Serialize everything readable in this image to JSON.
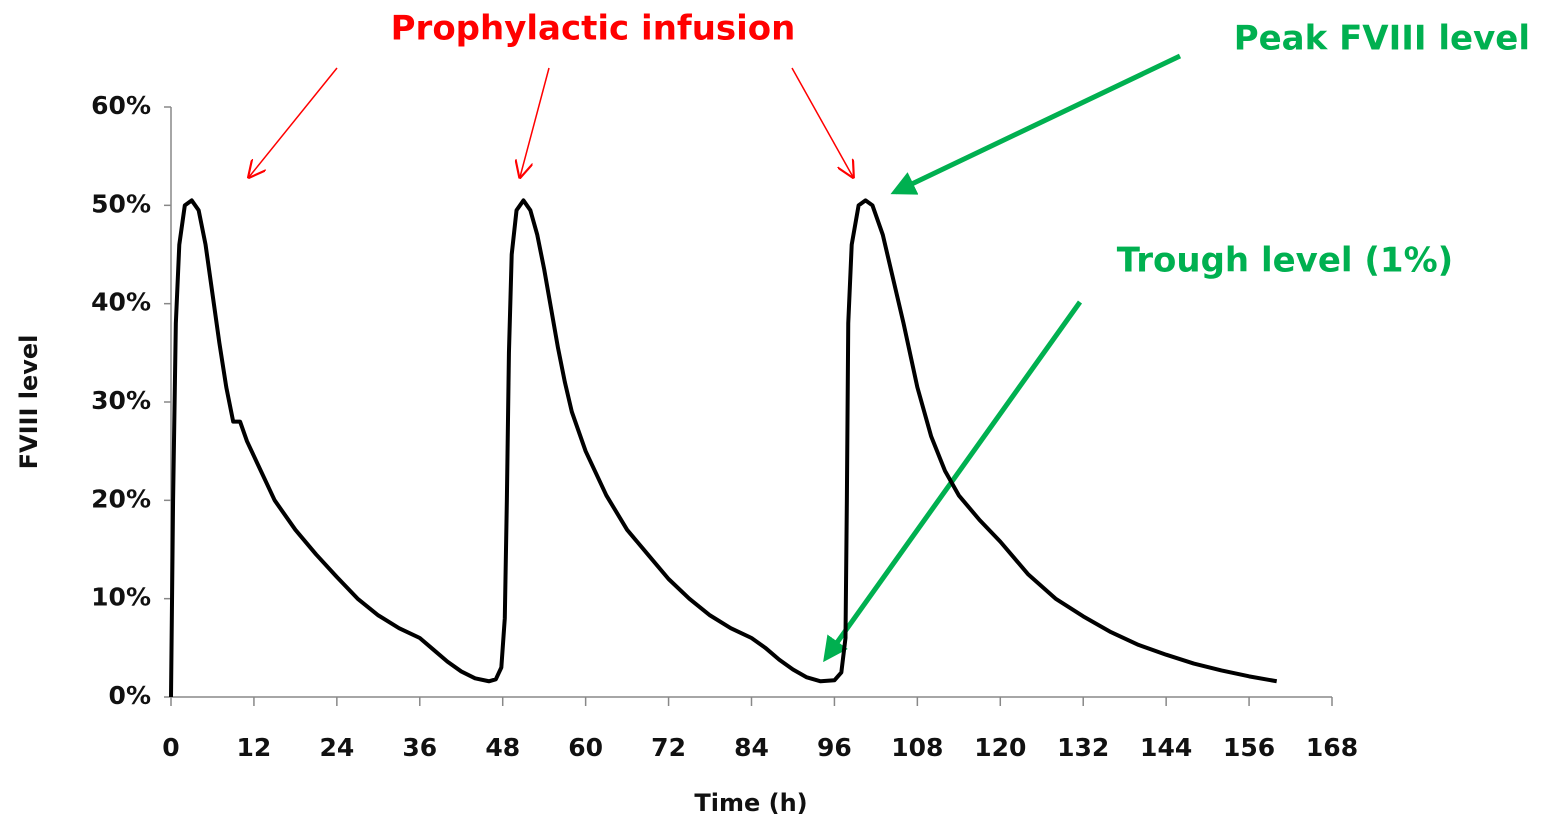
{
  "chart_data": {
    "type": "line",
    "xlabel": "Time (h)",
    "ylabel": "FVIII level",
    "annotations": [
      "Prophylactic infusion",
      "Peak FVIII level",
      "Trough level (1%)"
    ],
    "x": [
      0,
      0.3,
      0.7,
      1.2,
      2,
      3,
      4,
      5,
      6,
      7,
      8,
      9,
      10,
      11,
      12,
      15,
      18,
      21,
      24,
      27,
      30,
      33,
      36,
      38,
      40,
      42,
      44,
      46,
      47,
      47.8,
      48.3,
      48.6,
      48.9,
      49.3,
      50,
      51,
      52,
      53,
      54,
      55,
      56,
      57,
      58,
      60,
      63,
      66,
      69,
      72,
      75,
      78,
      81,
      84,
      86,
      88,
      90,
      92,
      94,
      96,
      97,
      97.6,
      97.8,
      98,
      98.5,
      99.5,
      100.5,
      101.5,
      103,
      104,
      106,
      108,
      110,
      112,
      114,
      117,
      120,
      124,
      128,
      132,
      136,
      140,
      144,
      148,
      152,
      156,
      160
    ],
    "series": [
      {
        "name": "FVIII level",
        "color": "#000000",
        "values": [
          0,
          20,
          38,
          46,
          50,
          50.5,
          49.5,
          46,
          41,
          36,
          31.5,
          28,
          28,
          26,
          24.5,
          20,
          17,
          14.5,
          12.2,
          10,
          8.3,
          7,
          6,
          4.8,
          3.6,
          2.6,
          1.9,
          1.6,
          1.8,
          3,
          8,
          20,
          35,
          45,
          49.5,
          50.5,
          49.5,
          47,
          43.5,
          39.5,
          35.5,
          32,
          29,
          25,
          20.5,
          17,
          14.5,
          12,
          10,
          8.3,
          7,
          6,
          5,
          3.8,
          2.8,
          2,
          1.6,
          1.7,
          2.5,
          6,
          20,
          38,
          46,
          50,
          50.5,
          50,
          47,
          44,
          38,
          31.5,
          26.5,
          23,
          20.5,
          18,
          15.8,
          12.5,
          10,
          8.2,
          6.6,
          5.3,
          4.3,
          3.4,
          2.7,
          2.1,
          1.6
        ]
      }
    ],
    "xlim": [
      0,
      168
    ],
    "xticks": [
      0,
      12,
      24,
      36,
      48,
      60,
      72,
      84,
      96,
      108,
      120,
      132,
      144,
      156,
      168
    ],
    "ylim": [
      0,
      60
    ],
    "yticks": [
      {
        "value": 0,
        "label": "0%"
      },
      {
        "value": 10,
        "label": "10%"
      },
      {
        "value": 20,
        "label": "20%"
      },
      {
        "value": 30,
        "label": "30%"
      },
      {
        "value": 40,
        "label": "40%"
      },
      {
        "value": 50,
        "label": "50%"
      },
      {
        "value": 60,
        "label": "60%"
      }
    ],
    "grid": false
  }
}
